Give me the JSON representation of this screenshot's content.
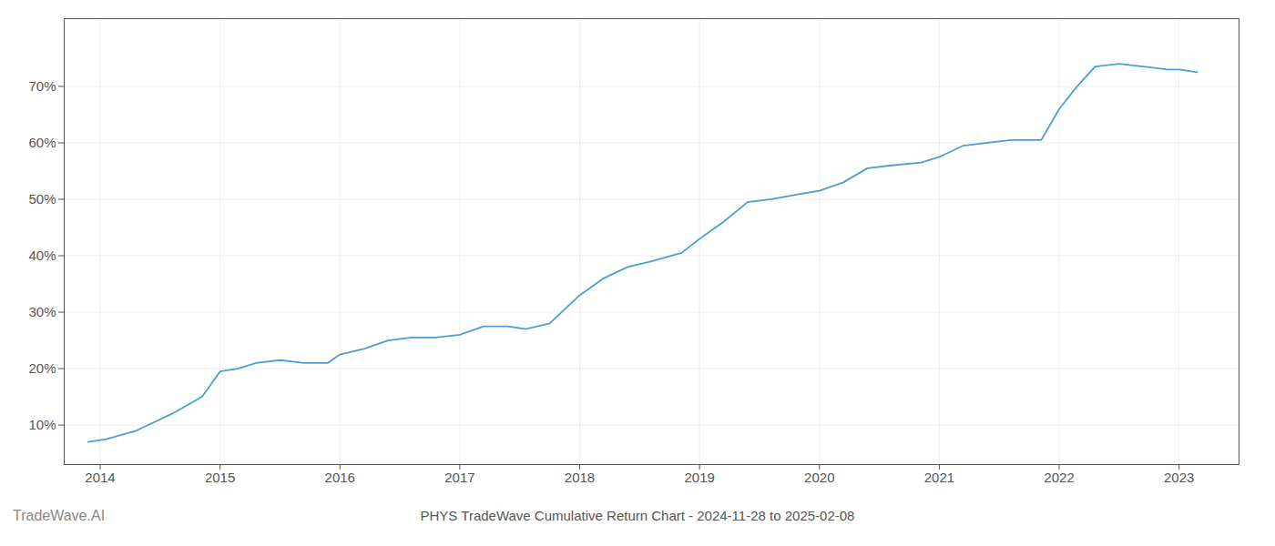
{
  "chart_data": {
    "type": "line",
    "title": "PHYS TradeWave Cumulative Return Chart - 2024-11-28 to 2025-02-08",
    "annotations": [
      "TradeWave.AI"
    ],
    "x": [
      2013.9,
      2014.05,
      2014.3,
      2014.6,
      2014.85,
      2015.0,
      2015.15,
      2015.3,
      2015.5,
      2015.7,
      2015.9,
      2016.0,
      2016.2,
      2016.4,
      2016.6,
      2016.8,
      2017.0,
      2017.2,
      2017.4,
      2017.55,
      2017.75,
      2018.0,
      2018.2,
      2018.4,
      2018.6,
      2018.85,
      2019.0,
      2019.2,
      2019.4,
      2019.6,
      2019.85,
      2020.0,
      2020.2,
      2020.4,
      2020.6,
      2020.85,
      2021.0,
      2021.2,
      2021.4,
      2021.6,
      2021.85,
      2022.0,
      2022.15,
      2022.3,
      2022.5,
      2022.7,
      2022.9,
      2023.0,
      2023.15
    ],
    "values": [
      7.0,
      7.5,
      9.0,
      12.0,
      15.0,
      19.5,
      20.0,
      21.0,
      21.5,
      21.0,
      21.0,
      22.5,
      23.5,
      25.0,
      25.5,
      25.5,
      26.0,
      27.5,
      27.5,
      27.0,
      28.0,
      33.0,
      36.0,
      38.0,
      39.0,
      40.5,
      43.0,
      46.0,
      49.5,
      50.0,
      51.0,
      51.5,
      53.0,
      55.5,
      56.0,
      56.5,
      57.5,
      59.5,
      60.0,
      60.5,
      60.5,
      66.0,
      70.0,
      73.5,
      74.0,
      73.5,
      73.0,
      73.0,
      72.5
    ],
    "color": "#4a9fd4",
    "xlim": [
      2013.7,
      2023.5
    ],
    "ylim": [
      3,
      82
    ],
    "xticks": [
      2014,
      2015,
      2016,
      2017,
      2018,
      2019,
      2020,
      2021,
      2022,
      2023
    ],
    "yticks": [
      {
        "value": 10,
        "label": "10%"
      },
      {
        "value": 20,
        "label": "20%"
      },
      {
        "value": 30,
        "label": "30%"
      },
      {
        "value": 40,
        "label": "40%"
      },
      {
        "value": 50,
        "label": "50%"
      },
      {
        "value": 60,
        "label": "60%"
      },
      {
        "value": 70,
        "label": "70%"
      }
    ],
    "grid": true
  }
}
